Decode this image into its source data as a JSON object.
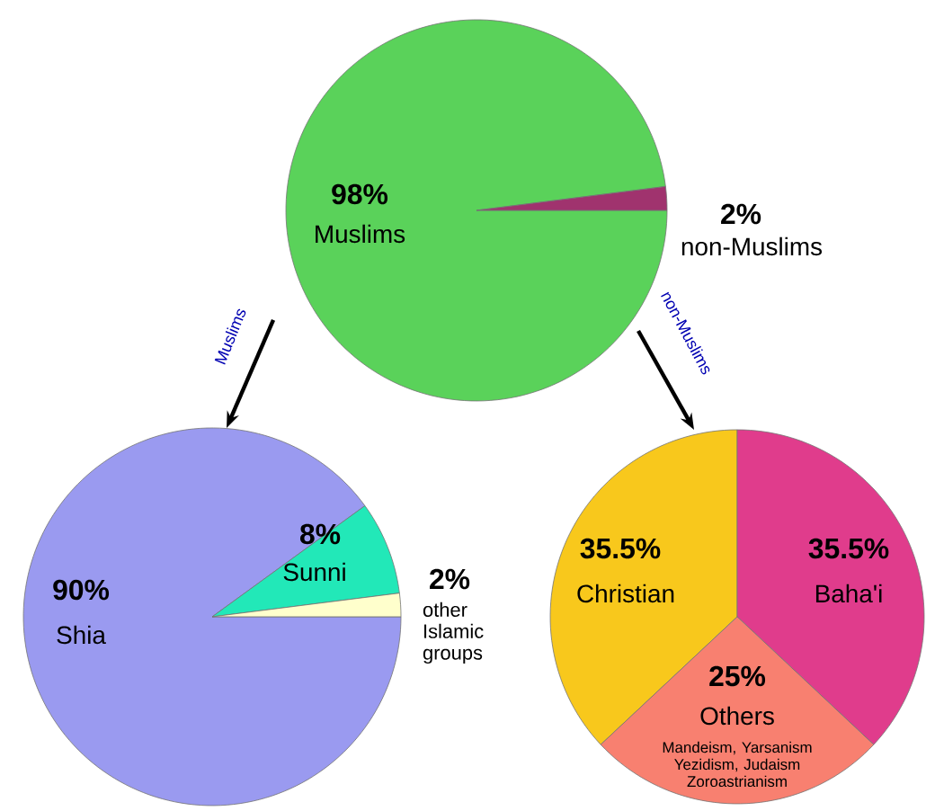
{
  "chart_data": [
    {
      "type": "pie",
      "categories": [
        "Muslims",
        "non-Muslims"
      ],
      "values": [
        98,
        2
      ],
      "colors": [
        "#5ad25a",
        "#a0336e"
      ],
      "value_labels": [
        "98%",
        "2%"
      ],
      "annotations": [
        "Muslims",
        "non-Muslims"
      ]
    },
    {
      "type": "pie",
      "categories": [
        "Shia",
        "Sunni",
        "other Islamic groups"
      ],
      "values": [
        90,
        8,
        2
      ],
      "colors": [
        "#9a9af0",
        "#22e8b8",
        "#ffffcc"
      ],
      "value_labels": [
        "90%",
        "8%",
        "2%"
      ]
    },
    {
      "type": "pie",
      "categories": [
        "Christian",
        "Baha'i",
        "Others"
      ],
      "values": [
        35.5,
        35.5,
        25
      ],
      "colors": [
        "#f8c81c",
        "#e03c8c",
        "#f88070"
      ],
      "value_labels": [
        "35.5%",
        "35.5%",
        "25%"
      ],
      "annotations": [
        "Mandeism, Yarsanism Yezidism, Judaism Zoroastrianism"
      ]
    }
  ]
}
